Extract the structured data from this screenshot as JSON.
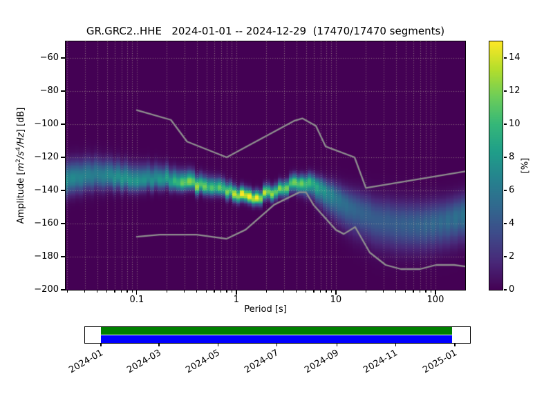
{
  "chart_data": {
    "type": "heatmap",
    "title": "GR.GRC2..HHE   2024-01-01 -- 2024-12-29  (17470/17470 segments)",
    "xlabel": "Period [s]",
    "ylabel_plain": "Amplitude [m²/s⁴/Hz] [dB]",
    "ylabel_parts": {
      "prefix": "Amplitude [",
      "m": "m",
      "m_exp": "2",
      "s": "/s",
      "s_exp": "4",
      "hz": "/Hz",
      "suffix": "] [dB]"
    },
    "xscale": "log",
    "xlim_s": [
      0.0193,
      199.0
    ],
    "ylim_db": [
      -200,
      -50
    ],
    "background_color": "#440154",
    "grid": {
      "color": "rgba(205,205,170,0.6)",
      "style": "dotted"
    },
    "colormap": "viridis",
    "xticks": [
      {
        "p": 0.1,
        "label": "0.1"
      },
      {
        "p": 1,
        "label": "1"
      },
      {
        "p": 10,
        "label": "10"
      },
      {
        "p": 100,
        "label": "100"
      }
    ],
    "yticks": [
      {
        "db": -60,
        "label": "−60"
      },
      {
        "db": -80,
        "label": "−80"
      },
      {
        "db": -100,
        "label": "−100"
      },
      {
        "db": -120,
        "label": "−120"
      },
      {
        "db": -140,
        "label": "−140"
      },
      {
        "db": -160,
        "label": "−160"
      },
      {
        "db": -180,
        "label": "−180"
      },
      {
        "db": -200,
        "label": "−200"
      }
    ],
    "colorbar": {
      "label": "[%]",
      "min": 0,
      "max": 15,
      "ticks": [
        {
          "v": 0,
          "label": "0"
        },
        {
          "v": 2,
          "label": "2"
        },
        {
          "v": 4,
          "label": "4"
        },
        {
          "v": 6,
          "label": "6"
        },
        {
          "v": 8,
          "label": "8"
        },
        {
          "v": 10,
          "label": "10"
        },
        {
          "v": 12,
          "label": "12"
        },
        {
          "v": 14,
          "label": "14"
        }
      ]
    },
    "histogram_bins": {
      "period_bin_octaves": 0.125,
      "db_bin_db": 1
    },
    "ppsd_band": {
      "description": "PPSD probability density approximated as asymmetric gaussian around the mode, percent of segments",
      "period_s": [
        0.019,
        0.04,
        0.07,
        0.1,
        0.14,
        0.2,
        0.3,
        0.4,
        0.55,
        0.8,
        1.2,
        1.6,
        2.2,
        3.2,
        4.5,
        6.0,
        8.0,
        11.0,
        16.0,
        25.0,
        40.0,
        70.0,
        110.0,
        160.0,
        200.0
      ],
      "mode_db": [
        -134,
        -130.5,
        -133,
        -135,
        -133.5,
        -133.5,
        -135.5,
        -136.5,
        -137.5,
        -140,
        -144,
        -144.5,
        -141.5,
        -137.5,
        -134.5,
        -136,
        -140.5,
        -146,
        -152,
        -157,
        -160,
        -161,
        -159,
        -156.5,
        -154.5
      ],
      "sigma_up_db": [
        7,
        6.5,
        6,
        6,
        5.5,
        5,
        4.5,
        4,
        4,
        3.5,
        3,
        3,
        3,
        3,
        3.2,
        3.5,
        4.5,
        6,
        7.5,
        8.5,
        9,
        9,
        8.5,
        8,
        8
      ],
      "sigma_down_db": [
        6,
        5.5,
        4.5,
        4,
        4,
        3.5,
        3,
        3,
        3,
        2.8,
        2.5,
        2.5,
        2.6,
        3,
        3.8,
        5.5,
        7.5,
        9,
        10,
        10.5,
        10.5,
        10,
        10,
        10,
        10
      ],
      "peak_percent": [
        7,
        6,
        7.5,
        7.5,
        7,
        8,
        11,
        12,
        10,
        11,
        15,
        14,
        12,
        11,
        11,
        9,
        7,
        5.5,
        4.6,
        4.2,
        4.2,
        4.5,
        4.8,
        5.2,
        5.5
      ]
    },
    "noise_models": {
      "color": "#8f8f8f",
      "line_width": 2.3,
      "high_noise_model": {
        "period_s": [
          0.1,
          0.22,
          0.32,
          0.8,
          3.8,
          4.6,
          6.3,
          7.9,
          15.4,
          20.0,
          200.0
        ],
        "db": [
          -91.5,
          -97.4,
          -110.5,
          -120.0,
          -98.0,
          -96.5,
          -101.0,
          -113.5,
          -120.0,
          -138.5,
          -128.5
        ]
      },
      "low_noise_model": {
        "period_s": [
          0.1,
          0.17,
          0.4,
          0.8,
          1.24,
          2.4,
          4.3,
          5.0,
          6.0,
          10.0,
          12.0,
          15.6,
          21.9,
          31.6,
          45.0,
          70.0,
          101.0,
          154.0,
          200.0
        ],
        "db": [
          -168.0,
          -166.7,
          -166.7,
          -169.2,
          -163.7,
          -148.6,
          -141.1,
          -141.1,
          -149.0,
          -163.8,
          -166.3,
          -162.1,
          -177.5,
          -185.0,
          -187.5,
          -187.5,
          -185.0,
          -185.0,
          -185.9
        ]
      }
    },
    "timeline": {
      "xlim_days": [
        -17.2,
        382.5
      ],
      "start_label": "2024-01-01",
      "end_label": "2024-12-29",
      "ticks": [
        {
          "day": 0,
          "label": "2024-01"
        },
        {
          "day": 60,
          "label": "2024-03"
        },
        {
          "day": 121,
          "label": "2024-05"
        },
        {
          "day": 182,
          "label": "2024-07"
        },
        {
          "day": 244,
          "label": "2024-09"
        },
        {
          "day": 305,
          "label": "2024-11"
        },
        {
          "day": 366,
          "label": "2025-01"
        }
      ],
      "bars": [
        {
          "color": "#008000",
          "start_day": 0,
          "end_day": 363
        },
        {
          "color": "#0000ff",
          "start_day": 0,
          "end_day": 363
        }
      ]
    }
  }
}
